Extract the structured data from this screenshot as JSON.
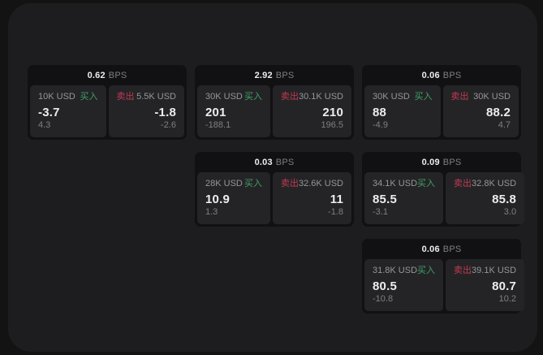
{
  "colors": {
    "outer_bg": "#131313",
    "panel_bg": "#1d1d1f",
    "card_bg": "#111113",
    "tile_bg": "#242427",
    "buy_green": "#3ea164",
    "sell_red": "#c23a52",
    "text_primary": "#ededee",
    "text_muted": "#96969a",
    "text_dim": "#7f7f83"
  },
  "labels": {
    "bps_unit": "BPS",
    "buy": "买入",
    "sell": "卖出"
  },
  "cards": [
    {
      "bps": "0.62",
      "buy": {
        "amount": "10K USD",
        "value": "-3.7",
        "sub": "4.3"
      },
      "sell": {
        "amount": "5.5K USD",
        "value": "-1.8",
        "sub": "-2.6"
      }
    },
    {
      "bps": "2.92",
      "buy": {
        "amount": "30K USD",
        "value": "201",
        "sub": "-188.1"
      },
      "sell": {
        "amount": "30.1K USD",
        "value": "210",
        "sub": "196.5"
      }
    },
    {
      "bps": "0.06",
      "buy": {
        "amount": "30K USD",
        "value": "88",
        "sub": "-4.9"
      },
      "sell": {
        "amount": "30K USD",
        "value": "88.2",
        "sub": "4.7"
      }
    },
    {
      "bps": "0.03",
      "buy": {
        "amount": "28K USD",
        "value": "10.9",
        "sub": "1.3"
      },
      "sell": {
        "amount": "32.6K USD",
        "value": "11",
        "sub": "-1.8"
      }
    },
    {
      "bps": "0.09",
      "buy": {
        "amount": "34.1K USD",
        "value": "85.5",
        "sub": "-3.1"
      },
      "sell": {
        "amount": "32.8K USD",
        "value": "85.8",
        "sub": "3.0"
      }
    },
    {
      "bps": "0.06",
      "buy": {
        "amount": "31.8K USD",
        "value": "80.5",
        "sub": "-10.8"
      },
      "sell": {
        "amount": "39.1K USD",
        "value": "80.7",
        "sub": "10.2"
      }
    }
  ]
}
